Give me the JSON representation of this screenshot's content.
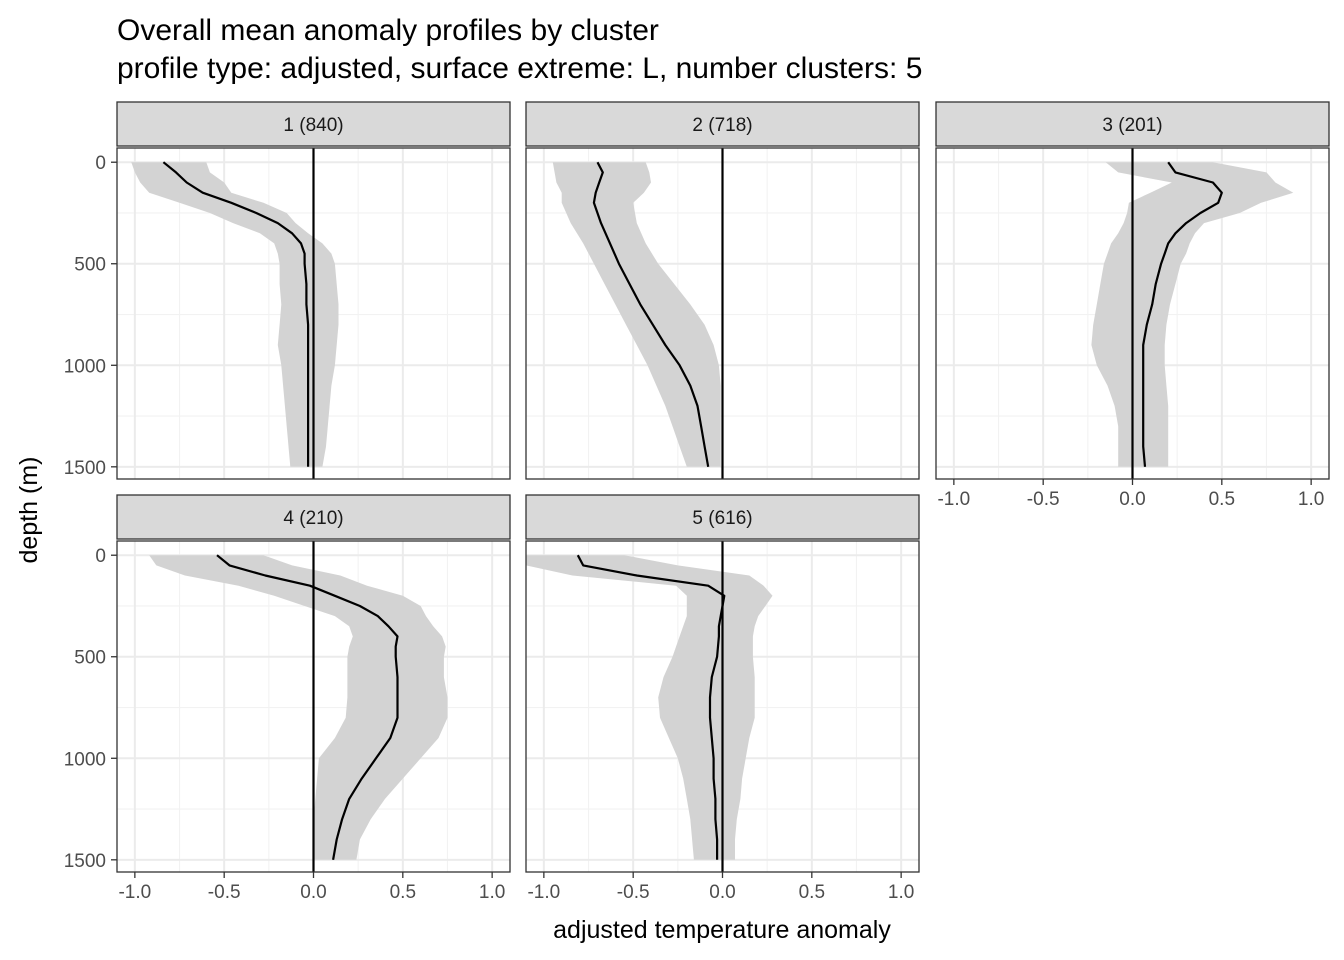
{
  "chart_data": {
    "type": "line",
    "title": "Overall mean anomaly profiles by cluster",
    "subtitle": "profile type: adjusted, surface extreme: L, number clusters: 5",
    "xlabel": "adjusted temperature anomaly",
    "ylabel": "depth (m)",
    "xlim": [
      -1.1,
      1.1
    ],
    "ylim": [
      1560,
      -70
    ],
    "x_ticks": [
      -1.0,
      -0.5,
      0.0,
      0.5,
      1.0
    ],
    "x_tick_labels": [
      "-1.0",
      "-0.5",
      "0.0",
      "0.5",
      "1.0"
    ],
    "y_ticks": [
      0,
      500,
      1000,
      1500
    ],
    "y_tick_labels": [
      "0",
      "500",
      "1000",
      "1500"
    ],
    "y_reversed": true,
    "reference_line_x": 0,
    "grid": true,
    "ribbon_color": "#d3d3d3",
    "line_color": "#000000",
    "strip_color": "#d9d9d9",
    "panels": [
      {
        "label": "1 (840)",
        "depth": [
          0,
          50,
          100,
          150,
          200,
          250,
          300,
          350,
          400,
          450,
          500,
          600,
          700,
          800,
          900,
          1000,
          1100,
          1200,
          1300,
          1400,
          1500
        ],
        "mean": [
          -0.84,
          -0.77,
          -0.71,
          -0.62,
          -0.46,
          -0.32,
          -0.2,
          -0.12,
          -0.07,
          -0.05,
          -0.05,
          -0.04,
          -0.04,
          -0.03,
          -0.03,
          -0.03,
          -0.03,
          -0.03,
          -0.03,
          -0.03,
          -0.03
        ],
        "lower": [
          -1.02,
          -1.0,
          -0.97,
          -0.92,
          -0.75,
          -0.58,
          -0.45,
          -0.3,
          -0.22,
          -0.2,
          -0.19,
          -0.19,
          -0.18,
          -0.19,
          -0.2,
          -0.18,
          -0.17,
          -0.16,
          -0.15,
          -0.14,
          -0.13
        ],
        "upper": [
          -0.6,
          -0.58,
          -0.5,
          -0.46,
          -0.28,
          -0.15,
          -0.1,
          -0.03,
          0.05,
          0.1,
          0.12,
          0.13,
          0.14,
          0.14,
          0.13,
          0.12,
          0.1,
          0.09,
          0.08,
          0.07,
          0.05
        ]
      },
      {
        "label": "2 (718)",
        "depth": [
          0,
          50,
          100,
          150,
          200,
          300,
          400,
          500,
          600,
          700,
          800,
          900,
          1000,
          1100,
          1200,
          1300,
          1400,
          1500
        ],
        "mean": [
          -0.7,
          -0.67,
          -0.69,
          -0.71,
          -0.72,
          -0.68,
          -0.63,
          -0.58,
          -0.52,
          -0.46,
          -0.39,
          -0.32,
          -0.24,
          -0.18,
          -0.14,
          -0.12,
          -0.1,
          -0.08
        ],
        "lower": [
          -0.95,
          -0.94,
          -0.93,
          -0.9,
          -0.9,
          -0.85,
          -0.78,
          -0.72,
          -0.66,
          -0.6,
          -0.54,
          -0.48,
          -0.42,
          -0.37,
          -0.32,
          -0.28,
          -0.24,
          -0.2
        ],
        "upper": [
          -0.43,
          -0.41,
          -0.4,
          -0.44,
          -0.5,
          -0.48,
          -0.43,
          -0.36,
          -0.27,
          -0.18,
          -0.1,
          -0.05,
          -0.02,
          -0.01,
          -0.01,
          -0.01,
          -0.01,
          -0.01
        ]
      },
      {
        "label": "3 (201)",
        "depth": [
          0,
          50,
          100,
          150,
          200,
          250,
          300,
          350,
          400,
          450,
          500,
          600,
          700,
          800,
          900,
          1000,
          1100,
          1200,
          1300,
          1400,
          1500
        ],
        "mean": [
          0.2,
          0.24,
          0.45,
          0.5,
          0.48,
          0.38,
          0.3,
          0.24,
          0.2,
          0.18,
          0.16,
          0.13,
          0.11,
          0.08,
          0.06,
          0.06,
          0.06,
          0.06,
          0.06,
          0.06,
          0.07
        ],
        "lower": [
          -0.15,
          -0.08,
          0.22,
          0.1,
          -0.02,
          -0.03,
          -0.05,
          -0.08,
          -0.12,
          -0.14,
          -0.16,
          -0.18,
          -0.2,
          -0.22,
          -0.23,
          -0.2,
          -0.14,
          -0.1,
          -0.08,
          -0.08,
          -0.08
        ],
        "upper": [
          0.45,
          0.75,
          0.8,
          0.9,
          0.72,
          0.6,
          0.4,
          0.35,
          0.32,
          0.3,
          0.27,
          0.24,
          0.21,
          0.19,
          0.18,
          0.18,
          0.19,
          0.2,
          0.2,
          0.2,
          0.2
        ]
      },
      {
        "label": "4 (210)",
        "depth": [
          0,
          50,
          100,
          150,
          200,
          250,
          300,
          350,
          400,
          450,
          500,
          600,
          700,
          800,
          900,
          1000,
          1100,
          1200,
          1300,
          1400,
          1500
        ],
        "mean": [
          -0.54,
          -0.47,
          -0.27,
          -0.02,
          0.12,
          0.26,
          0.36,
          0.42,
          0.47,
          0.46,
          0.46,
          0.47,
          0.47,
          0.47,
          0.43,
          0.35,
          0.27,
          0.2,
          0.16,
          0.13,
          0.11
        ],
        "lower": [
          -0.92,
          -0.88,
          -0.72,
          -0.42,
          -0.22,
          -0.05,
          0.12,
          0.2,
          0.22,
          0.2,
          0.19,
          0.19,
          0.19,
          0.18,
          0.12,
          0.03,
          0.02,
          0.01,
          0.0,
          0.0,
          0.0
        ],
        "upper": [
          -0.28,
          -0.12,
          0.15,
          0.3,
          0.5,
          0.6,
          0.63,
          0.67,
          0.72,
          0.74,
          0.73,
          0.73,
          0.75,
          0.75,
          0.7,
          0.6,
          0.5,
          0.4,
          0.32,
          0.26,
          0.24
        ]
      },
      {
        "label": "5 (616)",
        "depth": [
          0,
          50,
          100,
          150,
          200,
          250,
          300,
          350,
          400,
          500,
          600,
          700,
          800,
          900,
          1000,
          1100,
          1200,
          1300,
          1400,
          1500
        ],
        "mean": [
          -0.81,
          -0.78,
          -0.48,
          -0.08,
          0.01,
          0.0,
          -0.01,
          -0.02,
          -0.02,
          -0.03,
          -0.06,
          -0.07,
          -0.07,
          -0.06,
          -0.05,
          -0.05,
          -0.04,
          -0.04,
          -0.03,
          -0.03
        ],
        "lower": [
          -1.1,
          -1.1,
          -0.84,
          -0.26,
          -0.2,
          -0.2,
          -0.2,
          -0.22,
          -0.24,
          -0.28,
          -0.33,
          -0.36,
          -0.35,
          -0.3,
          -0.25,
          -0.22,
          -0.2,
          -0.18,
          -0.17,
          -0.16
        ],
        "upper": [
          -0.55,
          -0.25,
          0.15,
          0.23,
          0.28,
          0.24,
          0.2,
          0.18,
          0.17,
          0.17,
          0.18,
          0.18,
          0.18,
          0.15,
          0.13,
          0.11,
          0.1,
          0.08,
          0.07,
          0.07
        ]
      }
    ]
  }
}
